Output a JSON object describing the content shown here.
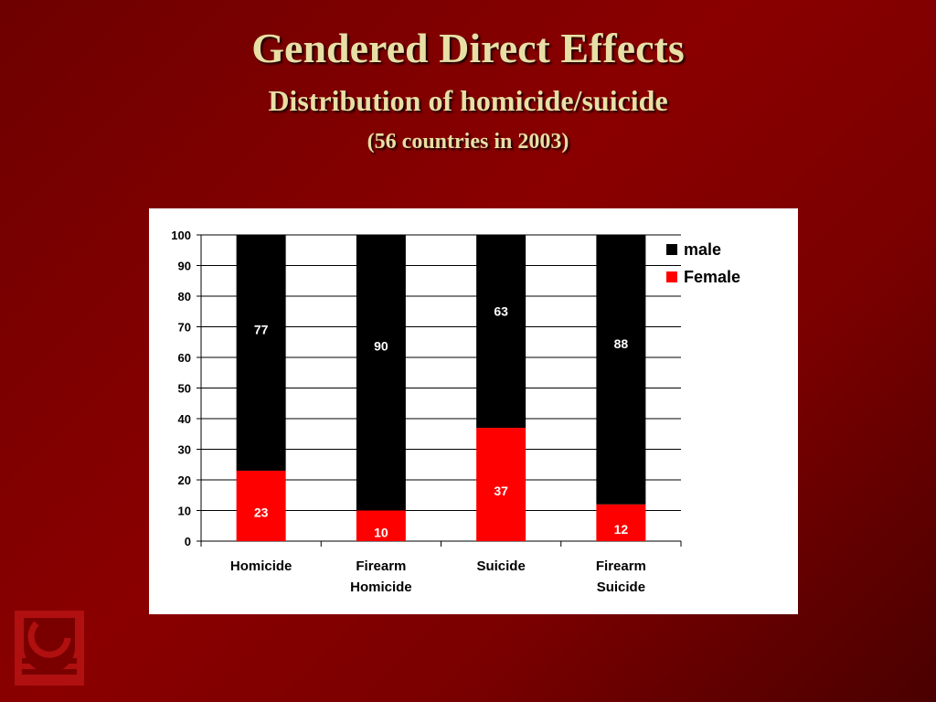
{
  "slide": {
    "title": "Gendered Direct Effects",
    "subtitle": "Distribution of homicide/suicide",
    "note": "(56 countries in 2003)"
  },
  "colors": {
    "background": "#7a0000",
    "title_text": "#e8dfa6",
    "male": "#000000",
    "female": "#ff0000"
  },
  "icons": {
    "logo": "university-logo-icon"
  },
  "chart_data": {
    "type": "bar",
    "stacked": true,
    "categories": [
      [
        "Homicide"
      ],
      [
        "Firearm",
        "Homicide"
      ],
      [
        "Suicide"
      ],
      [
        "Firearm",
        "Suicide"
      ]
    ],
    "series": [
      {
        "name": "Female",
        "values": [
          23,
          10,
          37,
          12
        ],
        "color": "#ff0000"
      },
      {
        "name": "male",
        "values": [
          77,
          90,
          63,
          88
        ],
        "color": "#000000"
      }
    ],
    "legend": {
      "placement": "top-right",
      "order": [
        "male",
        "Female"
      ]
    },
    "ylim": [
      0,
      100
    ],
    "yticks": [
      0,
      10,
      20,
      30,
      40,
      50,
      60,
      70,
      80,
      90,
      100
    ],
    "grid": true,
    "data_labels": true
  }
}
